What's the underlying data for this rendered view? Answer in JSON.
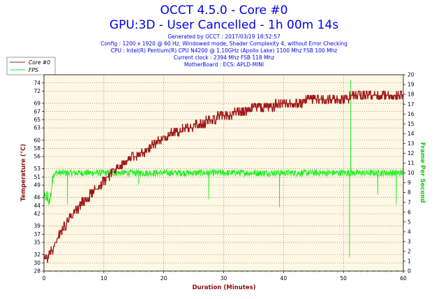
{
  "titles": {
    "line1": "OCCT 4.5.0 - Core #0",
    "line2": "GPU:3D - User Cancelled - 1h 00m 14s"
  },
  "info_lines": [
    "Generated by OCCT : 2017/03/19 18:52:57",
    "Config : 1200 x 1920 @ 60 Hz, Windowed mode, Shader Complexity 4, without Error Checking",
    "CPU : Intel(R) Pentium(R) CPU N4200 @ 1.10GHz (Apollo Lake) 1100 Mhz FSB 100 Mhz",
    "Current clock : 2394 Mhz FSB 118 Mhz",
    "MotherBoard : ECS: APLD-MINI"
  ],
  "legend": [
    {
      "label": "Core #0",
      "color": "#a01818"
    },
    {
      "label": "FPS",
      "color": "#22ee22"
    }
  ],
  "chart_data": {
    "type": "line",
    "xlabel": "Duration (Minutes)",
    "ylabel_left": "Temperature (°C)",
    "ylabel_right": "Frame Per Second",
    "xlim": [
      0,
      60
    ],
    "ylim_left": [
      28,
      76
    ],
    "ylim_right": [
      0,
      20
    ],
    "x_ticks": [
      0,
      10,
      20,
      30,
      40,
      50,
      60
    ],
    "y_left_ticks": [
      28,
      30,
      32,
      35,
      37,
      39,
      42,
      44,
      46,
      49,
      51,
      53,
      56,
      58,
      60,
      63,
      65,
      67,
      69,
      72,
      74
    ],
    "y_right_ticks": [
      0,
      1,
      2,
      3,
      4,
      5,
      6,
      7,
      8,
      9,
      10,
      11,
      12,
      13,
      14,
      15,
      16,
      17,
      18,
      19,
      20
    ],
    "grid": true,
    "series": [
      {
        "name": "Core #0",
        "axis": "left",
        "color": "#a01818",
        "x": [
          0,
          1,
          2,
          3,
          4,
          5,
          6,
          7,
          8,
          9,
          10,
          11,
          12,
          13,
          14,
          15,
          16,
          17,
          18,
          19,
          20,
          21,
          22,
          23,
          24,
          25,
          26,
          27,
          28,
          29,
          30,
          31,
          32,
          33,
          34,
          35,
          36,
          37,
          38,
          39,
          40,
          41,
          42,
          43,
          44,
          45,
          46,
          47,
          48,
          49,
          50,
          51,
          52,
          53,
          54,
          55,
          56,
          57,
          58,
          59,
          60
        ],
        "values": [
          30.5,
          32,
          35,
          38,
          40,
          42,
          44,
          45.5,
          47,
          48.5,
          50,
          51.5,
          52.5,
          53.5,
          55,
          56,
          57,
          57.5,
          58.5,
          59.5,
          60.5,
          61.5,
          62,
          62.5,
          63,
          63.5,
          64,
          64.5,
          65,
          65.5,
          66,
          66.3,
          66.6,
          67,
          67.3,
          67.6,
          68,
          68.2,
          68.4,
          68.6,
          68.8,
          69,
          69.2,
          69.4,
          69.6,
          69.8,
          70,
          70.1,
          70.2,
          70.3,
          70.4,
          70.5,
          70.6,
          70.7,
          70.8,
          70.9,
          71,
          71,
          71,
          71.1,
          71.1
        ]
      },
      {
        "name": "FPS",
        "axis": "right",
        "color": "#22ee22",
        "x": [
          0,
          0.5,
          1,
          1.5,
          2,
          3,
          4,
          5,
          6,
          8,
          10,
          12,
          14,
          16,
          18,
          20,
          22,
          24,
          26,
          28,
          30,
          32,
          34,
          36,
          38,
          40,
          42,
          44,
          46,
          48,
          50,
          52,
          54,
          56,
          58,
          60
        ],
        "values": [
          7.3,
          7.5,
          7.0,
          9.8,
          10.0,
          10.0,
          10.0,
          10.0,
          10.0,
          10.0,
          10.0,
          10.0,
          10.0,
          10.0,
          10.0,
          10.0,
          10.0,
          10.0,
          10.0,
          10.0,
          10.0,
          10.0,
          10.0,
          10.0,
          10.0,
          10.0,
          10.0,
          10.0,
          10.0,
          10.0,
          10.0,
          10.0,
          10.0,
          10.0,
          10.0,
          10.0
        ],
        "dips": [
          {
            "x": 3.9,
            "value": 6.8
          },
          {
            "x": 15.8,
            "value": 8.8
          },
          {
            "x": 27.5,
            "value": 7.3
          },
          {
            "x": 39.3,
            "value": 6.5
          },
          {
            "x": 51,
            "value": 1.4
          },
          {
            "x": 51.2,
            "value": 19.5
          },
          {
            "x": 55.7,
            "value": 7.8
          },
          {
            "x": 58.8,
            "value": 6.8
          }
        ]
      }
    ]
  }
}
